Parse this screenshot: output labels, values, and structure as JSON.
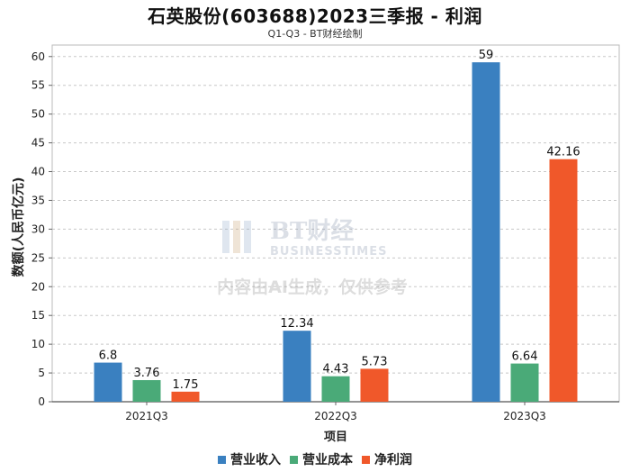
{
  "chart_data": {
    "type": "bar",
    "title": "石英股份(603688)2023三季报 - 利润",
    "subtitle": "Q1-Q3 - BT财经绘制",
    "xlabel": "项目",
    "ylabel": "数额(人民币亿元)",
    "ylim": [
      0,
      62
    ],
    "yticks": [
      0,
      5,
      10,
      15,
      20,
      25,
      30,
      35,
      40,
      45,
      50,
      55,
      60
    ],
    "categories": [
      "2021Q3",
      "2022Q3",
      "2023Q3"
    ],
    "series": [
      {
        "name": "营业收入",
        "color": "#3a80c0",
        "values": [
          6.8,
          12.34,
          59
        ]
      },
      {
        "name": "营业成本",
        "color": "#4aaa78",
        "values": [
          3.76,
          4.43,
          6.64
        ]
      },
      {
        "name": "净利润",
        "color": "#f0582a",
        "values": [
          1.75,
          5.73,
          42.16
        ]
      }
    ],
    "grid": true,
    "legend_position": "bottom-center"
  },
  "watermark": {
    "logo_text": "BT财经",
    "logo_subtext": "BUSINESSTIMES",
    "notice": "内容由AI生成，仅供参考"
  }
}
